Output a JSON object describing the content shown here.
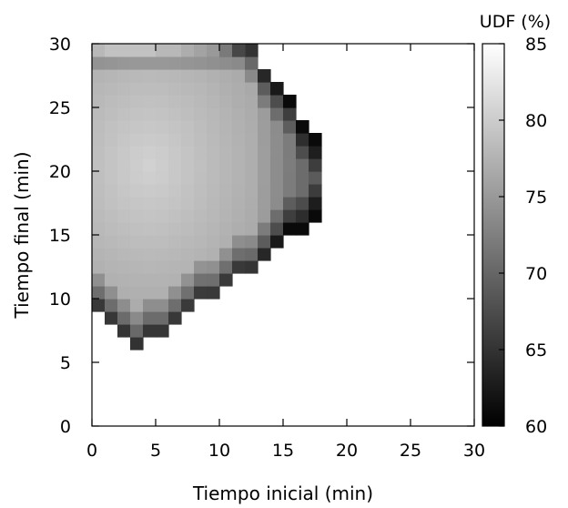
{
  "chart_data": {
    "type": "heatmap",
    "title": "",
    "xlabel": "Tiempo inicial (min)",
    "ylabel": "Tiempo final (min)",
    "xlim": [
      0,
      30
    ],
    "ylim": [
      0,
      30
    ],
    "xticks": [
      "0",
      "5",
      "10",
      "15",
      "20",
      "25",
      "30"
    ],
    "yticks": [
      "0",
      "5",
      "10",
      "15",
      "20",
      "25",
      "30"
    ],
    "grid": false,
    "colorbar": {
      "label": "UDF (%)",
      "range": [
        60,
        85
      ],
      "ticks": [
        "60",
        "65",
        "70",
        "75",
        "80",
        "85"
      ],
      "colormap": "gray (black = 60, white = 85)"
    },
    "cell_size_min": 1,
    "description_of_values": "UDF (%) value for each (Tiempo inicial, Tiempo final) pair; defined in a triangular region bounded by x from 0 to about 18 min and y from about 6 to 30 min; values near the lower-left and right edges are darker (lower UDF ~ 63-68), interior is lighter (~77-81).",
    "cells": [
      {
        "x": 0,
        "y": 30,
        "v": 78
      },
      {
        "x": 1,
        "y": 30,
        "v": 79
      },
      {
        "x": 2,
        "y": 30,
        "v": 79
      },
      {
        "x": 3,
        "y": 30,
        "v": 79
      },
      {
        "x": 4,
        "y": 30,
        "v": 79
      },
      {
        "x": 5,
        "y": 30,
        "v": 78
      },
      {
        "x": 6,
        "y": 30,
        "v": 78
      },
      {
        "x": 7,
        "y": 30,
        "v": 77
      },
      {
        "x": 8,
        "y": 30,
        "v": 76
      },
      {
        "x": 9,
        "y": 30,
        "v": 75
      },
      {
        "x": 10,
        "y": 30,
        "v": 72
      },
      {
        "x": 11,
        "y": 30,
        "v": 67
      }
    ]
  }
}
